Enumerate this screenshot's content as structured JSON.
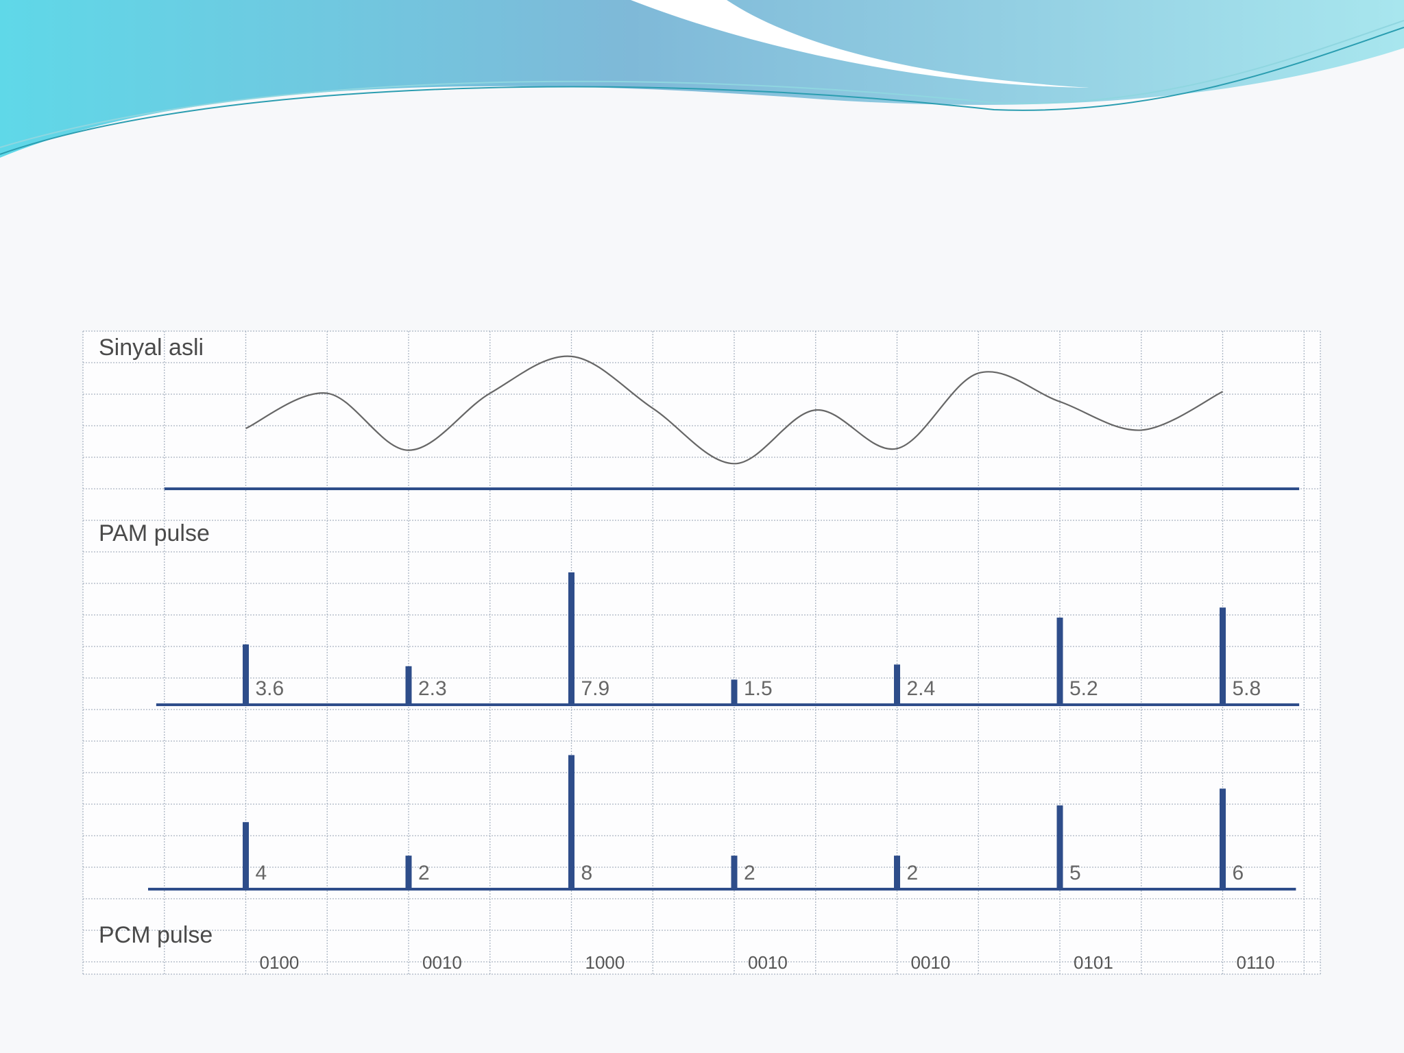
{
  "chart_data": [
    {
      "type": "line",
      "title": "Sinyal asli",
      "color": "#666666",
      "x": [
        1,
        1.5,
        2,
        2.5,
        3,
        3.5,
        4,
        4.5,
        5,
        5.5,
        6,
        6.5,
        7
      ],
      "values": [
        3.6,
        5.7,
        2.3,
        5.7,
        7.9,
        4.8,
        1.5,
        4.7,
        2.4,
        6.9,
        5.2,
        3.5,
        5.8
      ],
      "xlim": [
        0,
        7.6
      ],
      "ylim": [
        0,
        9
      ]
    },
    {
      "type": "bar",
      "title": "PAM pulse",
      "color": "#2e4d8a",
      "x": [
        1,
        2,
        3,
        4,
        5,
        6,
        7
      ],
      "values": [
        3.6,
        2.3,
        7.9,
        1.5,
        2.4,
        5.2,
        5.8
      ],
      "xlim": [
        0,
        7.6
      ],
      "ylim": [
        0,
        9
      ]
    },
    {
      "type": "bar",
      "color": "#2e4d8a",
      "x": [
        1,
        2,
        3,
        4,
        5,
        6,
        7
      ],
      "values": [
        4,
        2,
        8,
        2,
        2,
        5,
        6
      ],
      "xlim": [
        0,
        7.6
      ],
      "ylim": [
        0,
        9
      ]
    }
  ],
  "pcm": {
    "title": "PCM pulse",
    "codes": [
      "0100",
      "0010",
      "1000",
      "0010",
      "0010",
      "0101",
      "0110"
    ]
  }
}
